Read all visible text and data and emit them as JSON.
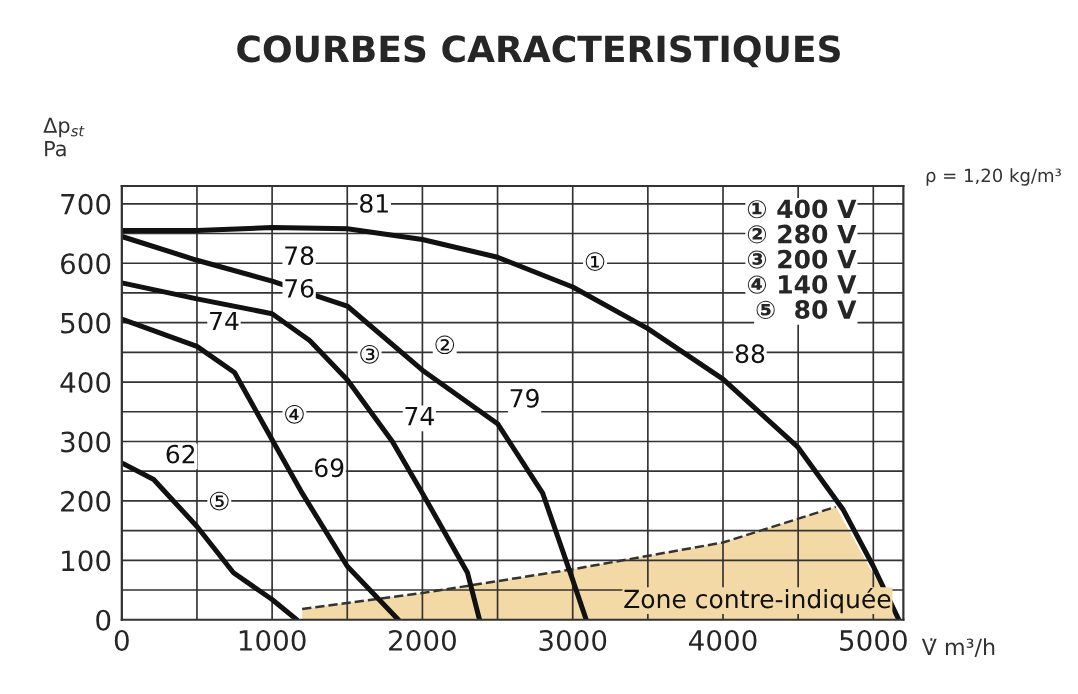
{
  "chart_data": {
    "type": "line",
    "title": "COURBES CARACTERISTIQUES",
    "xlabel": "V̇ m³/h",
    "ylabel": "Δp$_{st}$\nPa",
    "xlim": [
      0,
      5200
    ],
    "ylim": [
      0,
      730
    ],
    "xticks": [
      0,
      {
        "value": 500,
        "label": null
      },
      1000,
      {
        "value": 1500,
        "label": null
      },
      2000,
      {
        "value": 2500,
        "label": null
      },
      3000,
      {
        "value": 3500,
        "label": null
      },
      4000,
      {
        "value": 4500,
        "label": null
      },
      5000
    ],
    "yticks": [
      0,
      {
        "value": 50,
        "label": null
      },
      100,
      {
        "value": 150,
        "label": null
      },
      200,
      {
        "value": 250,
        "label": null
      },
      300,
      {
        "value": 350,
        "label": null
      },
      400,
      {
        "value": 450,
        "label": null
      },
      500,
      {
        "value": 550,
        "label": null
      },
      600,
      {
        "value": 650,
        "label": null
      },
      700
    ],
    "grid": true,
    "legend": false,
    "marker": "none",
    "line_style": "solid",
    "series": [
      {
        "type": "area",
        "color": "#f2d9a6",
        "x": [
          1200,
          2000,
          3000,
          4000,
          4750,
          5170
        ],
        "values": [
          18,
          45,
          85,
          130,
          190,
          0
        ]
      },
      {
        "color": "#111111",
        "x": [
          0,
          500,
          1000,
          1500,
          2000,
          2500,
          3000,
          3500,
          4000,
          4500,
          4800,
          5000,
          5170
        ],
        "values": [
          655,
          655,
          660,
          658,
          640,
          610,
          560,
          490,
          405,
          290,
          185,
          90,
          0
        ]
      },
      {
        "color": "#111111",
        "x": [
          0,
          500,
          1000,
          1500,
          2000,
          2500,
          2800,
          3000,
          3090
        ],
        "values": [
          645,
          605,
          570,
          528,
          420,
          330,
          213,
          67,
          0
        ]
      },
      {
        "color": "#111111",
        "x": [
          0,
          500,
          1000,
          1250,
          1500,
          1800,
          2000,
          2300,
          2380
        ],
        "values": [
          567,
          540,
          515,
          470,
          404,
          300,
          213,
          79,
          0
        ]
      },
      {
        "color": "#111111",
        "x": [
          0,
          500,
          750,
          1000,
          1200,
          1500,
          1840
        ],
        "values": [
          506,
          460,
          416,
          303,
          213,
          90,
          0
        ]
      },
      {
        "color": "#111111",
        "x": [
          0,
          212,
          500,
          743,
          1000,
          1164
        ],
        "values": [
          264,
          236,
          157,
          79,
          34,
          0
        ]
      }
    ],
    "annotations": [
      {
        "text": "81",
        "x": 1500,
        "y": 658
      },
      {
        "text": "78",
        "x": 1000,
        "y": 570
      },
      {
        "text": "76",
        "x": 1000,
        "y": 515
      },
      {
        "text": "74",
        "x": 500,
        "y": 460
      },
      {
        "text": "62",
        "x": 212,
        "y": 236
      },
      {
        "text": "69",
        "x": 1200,
        "y": 213
      },
      {
        "text": "74",
        "x": 1800,
        "y": 300
      },
      {
        "text": "79",
        "x": 2500,
        "y": 330
      },
      {
        "text": "88",
        "x": 4000,
        "y": 405
      },
      {
        "text": "①",
        "x": 3000,
        "y": 560
      },
      {
        "text": "②",
        "x": 2000,
        "y": 420
      },
      {
        "text": "③",
        "x": 1500,
        "y": 404
      },
      {
        "text": "④",
        "x": 1000,
        "y": 303
      },
      {
        "text": "⑤",
        "x": 500,
        "y": 157
      },
      "Zone contre-indiquée",
      "① 400 V",
      "② 280 V",
      "③ 200 V",
      "④ 140 V",
      "⑤  80 V",
      "ρ = 1,20 kg/m³"
    ]
  }
}
